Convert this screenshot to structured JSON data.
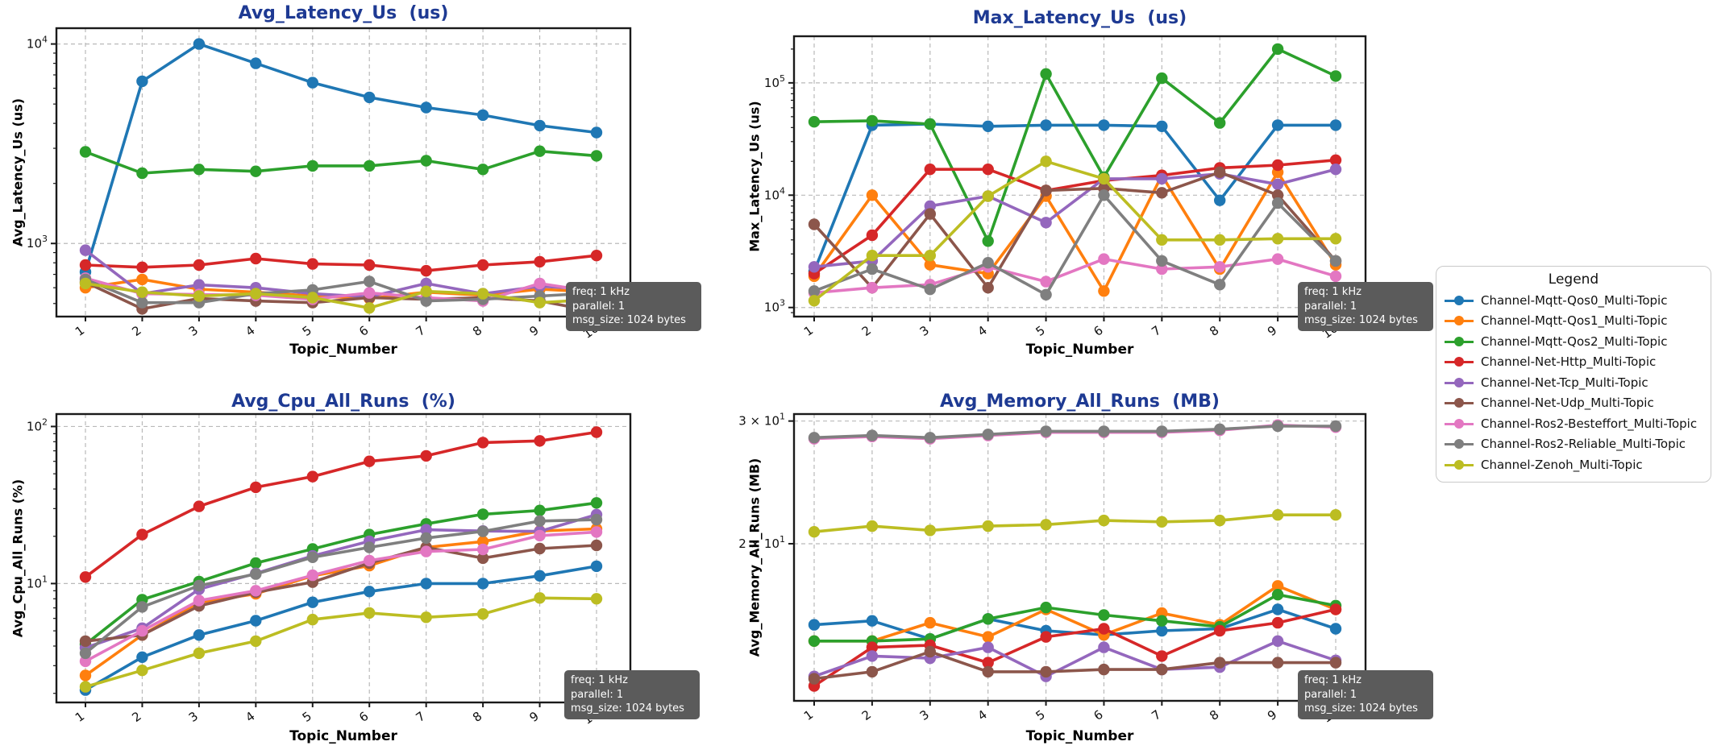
{
  "annotation": {
    "lines": [
      "freq: 1 kHz",
      "parallel: 1",
      "msg_size: 1024 bytes"
    ]
  },
  "legend": {
    "title": "Legend",
    "entries": [
      {
        "label": "Channel-Mqtt-Qos0_Multi-Topic",
        "color": "#1f77b4"
      },
      {
        "label": "Channel-Mqtt-Qos1_Multi-Topic",
        "color": "#ff7f0e"
      },
      {
        "label": "Channel-Mqtt-Qos2_Multi-Topic",
        "color": "#2ca02c"
      },
      {
        "label": "Channel-Net-Http_Multi-Topic",
        "color": "#d62728"
      },
      {
        "label": "Channel-Net-Tcp_Multi-Topic",
        "color": "#9467bd"
      },
      {
        "label": "Channel-Net-Udp_Multi-Topic",
        "color": "#8c564b"
      },
      {
        "label": "Channel-Ros2-Besteffort_Multi-Topic",
        "color": "#e377c2"
      },
      {
        "label": "Channel-Ros2-Reliable_Multi-Topic",
        "color": "#7f7f7f"
      },
      {
        "label": "Channel-Zenoh_Multi-Topic",
        "color": "#bcbd22"
      }
    ]
  },
  "chart_data": [
    {
      "type": "line",
      "id": "avg-latency",
      "title": "Avg_Latency_Us  (us)",
      "ylabel": "Avg_Latency_Us (us)",
      "xlabel": "Topic_Number",
      "yscale": "log",
      "ylim": [
        430,
        12000
      ],
      "yticks": [
        {
          "v": 10000,
          "label": "10^4"
        },
        {
          "v": 1000,
          "label": "10^3"
        }
      ],
      "x": [
        1,
        2,
        3,
        4,
        5,
        6,
        7,
        8,
        9,
        10
      ],
      "series": [
        {
          "name": "Channel-Mqtt-Qos0_Multi-Topic",
          "color": "#1f77b4",
          "values": [
            720,
            6500,
            10000,
            8000,
            6400,
            5400,
            4800,
            4400,
            3900,
            3600
          ]
        },
        {
          "name": "Channel-Mqtt-Qos1_Multi-Topic",
          "color": "#ff7f0e",
          "values": [
            600,
            660,
            590,
            570,
            545,
            530,
            570,
            550,
            590,
            570
          ]
        },
        {
          "name": "Channel-Mqtt-Qos2_Multi-Topic",
          "color": "#2ca02c",
          "values": [
            2880,
            2250,
            2350,
            2300,
            2450,
            2450,
            2600,
            2350,
            2900,
            2750
          ]
        },
        {
          "name": "Channel-Net-Http_Multi-Topic",
          "color": "#d62728",
          "values": [
            780,
            760,
            780,
            840,
            790,
            780,
            730,
            780,
            810,
            870
          ]
        },
        {
          "name": "Channel-Net-Tcp_Multi-Topic",
          "color": "#9467bd",
          "values": [
            925,
            560,
            620,
            600,
            560,
            540,
            630,
            560,
            610,
            590
          ]
        },
        {
          "name": "Channel-Net-Udp_Multi-Topic",
          "color": "#8c564b",
          "values": [
            640,
            470,
            530,
            515,
            505,
            535,
            525,
            535,
            515,
            455
          ]
        },
        {
          "name": "Channel-Ros2-Besteffort_Multi-Topic",
          "color": "#e377c2",
          "values": [
            670,
            560,
            555,
            550,
            525,
            565,
            535,
            515,
            630,
            570
          ]
        },
        {
          "name": "Channel-Ros2-Reliable_Multi-Topic",
          "color": "#7f7f7f",
          "values": [
            660,
            505,
            505,
            560,
            585,
            645,
            515,
            525,
            545,
            565
          ]
        },
        {
          "name": "Channel-Zenoh_Multi-Topic",
          "color": "#bcbd22",
          "values": [
            630,
            570,
            545,
            560,
            535,
            475,
            575,
            560,
            505,
            525
          ]
        }
      ]
    },
    {
      "type": "line",
      "id": "max-latency",
      "title": "Max_Latency_Us  (us)",
      "ylabel": "Max_Latency_Us (us)",
      "xlabel": "Topic_Number",
      "yscale": "log",
      "ylim": [
        830,
        260000
      ],
      "yticks": [
        {
          "v": 100000,
          "label": "10^5"
        },
        {
          "v": 10000,
          "label": "10^4"
        },
        {
          "v": 1000,
          "label": "10^3"
        }
      ],
      "x": [
        1,
        2,
        3,
        4,
        5,
        6,
        7,
        8,
        9,
        10
      ],
      "series": [
        {
          "name": "Channel-Mqtt-Qos0_Multi-Topic",
          "color": "#1f77b4",
          "values": [
            2100,
            42000,
            43000,
            41000,
            42000,
            42000,
            41000,
            9000,
            42000,
            42000
          ]
        },
        {
          "name": "Channel-Mqtt-Qos1_Multi-Topic",
          "color": "#ff7f0e",
          "values": [
            1900,
            10000,
            2400,
            2000,
            9800,
            1400,
            15000,
            2200,
            16000,
            2400
          ]
        },
        {
          "name": "Channel-Mqtt-Qos2_Multi-Topic",
          "color": "#2ca02c",
          "values": [
            45000,
            46000,
            43000,
            3900,
            120000,
            14500,
            110000,
            44000,
            200000,
            115000
          ]
        },
        {
          "name": "Channel-Net-Http_Multi-Topic",
          "color": "#d62728",
          "values": [
            2000,
            4400,
            17000,
            17000,
            11000,
            13500,
            15000,
            17500,
            18500,
            20500
          ]
        },
        {
          "name": "Channel-Net-Tcp_Multi-Topic",
          "color": "#9467bd",
          "values": [
            2300,
            2600,
            8000,
            9800,
            5700,
            14000,
            14000,
            15500,
            12500,
            17000
          ]
        },
        {
          "name": "Channel-Net-Udp_Multi-Topic",
          "color": "#8c564b",
          "values": [
            5500,
            1500,
            6800,
            1500,
            11000,
            11500,
            10500,
            16000,
            10000,
            2600
          ]
        },
        {
          "name": "Channel-Ros2-Besteffort_Multi-Topic",
          "color": "#e377c2",
          "values": [
            1350,
            1500,
            1600,
            2300,
            1700,
            2700,
            2200,
            2300,
            2700,
            1900
          ]
        },
        {
          "name": "Channel-Ros2-Reliable_Multi-Topic",
          "color": "#7f7f7f",
          "values": [
            1400,
            2200,
            1450,
            2500,
            1300,
            10000,
            2600,
            1600,
            8500,
            2600
          ]
        },
        {
          "name": "Channel-Zenoh_Multi-Topic",
          "color": "#bcbd22",
          "values": [
            1150,
            2900,
            2900,
            9800,
            20000,
            14000,
            4000,
            4000,
            4100,
            4100
          ]
        }
      ]
    },
    {
      "type": "line",
      "id": "avg-cpu",
      "title": "Avg_Cpu_All_Runs  (%)",
      "ylabel": "Avg_Cpu_All_Runs (%)",
      "xlabel": "Topic_Number",
      "yscale": "log",
      "ylim": [
        1.75,
        120
      ],
      "yticks": [
        {
          "v": 100,
          "label": "10^2"
        },
        {
          "v": 10,
          "label": "10^1"
        }
      ],
      "x": [
        1,
        2,
        3,
        4,
        5,
        6,
        7,
        8,
        9,
        10
      ],
      "series": [
        {
          "name": "Channel-Mqtt-Qos0_Multi-Topic",
          "color": "#1f77b4",
          "values": [
            2.1,
            3.4,
            4.7,
            5.8,
            7.6,
            8.9,
            10,
            10,
            11.2,
            12.9
          ]
        },
        {
          "name": "Channel-Mqtt-Qos1_Multi-Topic",
          "color": "#ff7f0e",
          "values": [
            2.6,
            4.7,
            7.6,
            8.6,
            11.2,
            13,
            17,
            18.5,
            21.6,
            22.3
          ]
        },
        {
          "name": "Channel-Mqtt-Qos2_Multi-Topic",
          "color": "#2ca02c",
          "values": [
            4.1,
            7.9,
            10.3,
            13.5,
            16.6,
            20.5,
            24,
            27.6,
            29.2,
            32.6
          ]
        },
        {
          "name": "Channel-Net-Http_Multi-Topic",
          "color": "#d62728",
          "values": [
            11,
            20.5,
            31,
            41,
            48,
            60,
            65,
            79,
            81,
            92
          ]
        },
        {
          "name": "Channel-Net-Tcp_Multi-Topic",
          "color": "#9467bd",
          "values": [
            3.9,
            5.2,
            9.2,
            11.6,
            15,
            18.6,
            22,
            21.6,
            21.5,
            27.5
          ]
        },
        {
          "name": "Channel-Net-Udp_Multi-Topic",
          "color": "#8c564b",
          "values": [
            4.3,
            4.7,
            7.2,
            8.8,
            10.2,
            13.5,
            17,
            14.5,
            16.7,
            17.5
          ]
        },
        {
          "name": "Channel-Ros2-Besteffort_Multi-Topic",
          "color": "#e377c2",
          "values": [
            3.2,
            5.0,
            7.8,
            9.0,
            11.3,
            14,
            16,
            16.5,
            20.2,
            21.3
          ]
        },
        {
          "name": "Channel-Ros2-Reliable_Multi-Topic",
          "color": "#7f7f7f",
          "values": [
            3.6,
            7.1,
            9.7,
            11.5,
            14.7,
            17,
            19.5,
            21.5,
            25,
            25.5
          ]
        },
        {
          "name": "Channel-Zenoh_Multi-Topic",
          "color": "#bcbd22",
          "values": [
            2.2,
            2.8,
            3.6,
            4.3,
            5.9,
            6.5,
            6.1,
            6.4,
            8.1,
            8.0
          ]
        }
      ]
    },
    {
      "type": "line",
      "id": "avg-memory",
      "title": "Avg_Memory_All_Runs  (MB)",
      "ylabel": "Avg_Memory_All_Runs (MB)",
      "xlabel": "Topic_Number",
      "yscale": "log",
      "ylim": [
        11.9,
        30.7
      ],
      "yticks": [
        {
          "v": 30,
          "label": "3 × 10^1"
        },
        {
          "v": 20,
          "label": "2 × 10^1"
        }
      ],
      "x": [
        1,
        2,
        3,
        4,
        5,
        6,
        7,
        8,
        9,
        10
      ],
      "series": [
        {
          "name": "Channel-Mqtt-Qos0_Multi-Topic",
          "color": "#1f77b4",
          "values": [
            15.3,
            15.5,
            14.6,
            15.6,
            15.0,
            14.8,
            15.0,
            15.1,
            16.1,
            15.1
          ]
        },
        {
          "name": "Channel-Mqtt-Qos1_Multi-Topic",
          "color": "#ff7f0e",
          "values": [
            14.5,
            14.5,
            15.4,
            14.7,
            16.1,
            14.8,
            15.9,
            15.3,
            17.4,
            16.1
          ]
        },
        {
          "name": "Channel-Mqtt-Qos2_Multi-Topic",
          "color": "#2ca02c",
          "values": [
            14.5,
            14.5,
            14.6,
            15.6,
            16.2,
            15.8,
            15.5,
            15.2,
            16.9,
            16.3
          ]
        },
        {
          "name": "Channel-Net-Http_Multi-Topic",
          "color": "#d62728",
          "values": [
            12.5,
            14.2,
            14.3,
            13.5,
            14.7,
            15.1,
            13.8,
            15.0,
            15.4,
            16.1
          ]
        },
        {
          "name": "Channel-Net-Tcp_Multi-Topic",
          "color": "#9467bd",
          "values": [
            12.9,
            13.8,
            13.7,
            14.2,
            12.9,
            14.2,
            13.2,
            13.3,
            14.5,
            13.6
          ]
        },
        {
          "name": "Channel-Net-Udp_Multi-Topic",
          "color": "#8c564b",
          "values": [
            12.8,
            13.1,
            14.0,
            13.1,
            13.1,
            13.2,
            13.2,
            13.5,
            13.5,
            13.5
          ]
        },
        {
          "name": "Channel-Ros2-Besteffort_Multi-Topic",
          "color": "#e377c2",
          "values": [
            28.3,
            28.5,
            28.3,
            28.6,
            28.9,
            28.9,
            28.9,
            29.1,
            29.6,
            29.4
          ]
        },
        {
          "name": "Channel-Ros2-Reliable_Multi-Topic",
          "color": "#7f7f7f",
          "values": [
            28.4,
            28.6,
            28.4,
            28.7,
            29.0,
            29.0,
            29.0,
            29.2,
            29.5,
            29.5
          ]
        },
        {
          "name": "Channel-Zenoh_Multi-Topic",
          "color": "#bcbd22",
          "values": [
            20.8,
            21.2,
            20.9,
            21.2,
            21.3,
            21.6,
            21.5,
            21.6,
            22.0,
            22.0
          ]
        }
      ]
    }
  ]
}
